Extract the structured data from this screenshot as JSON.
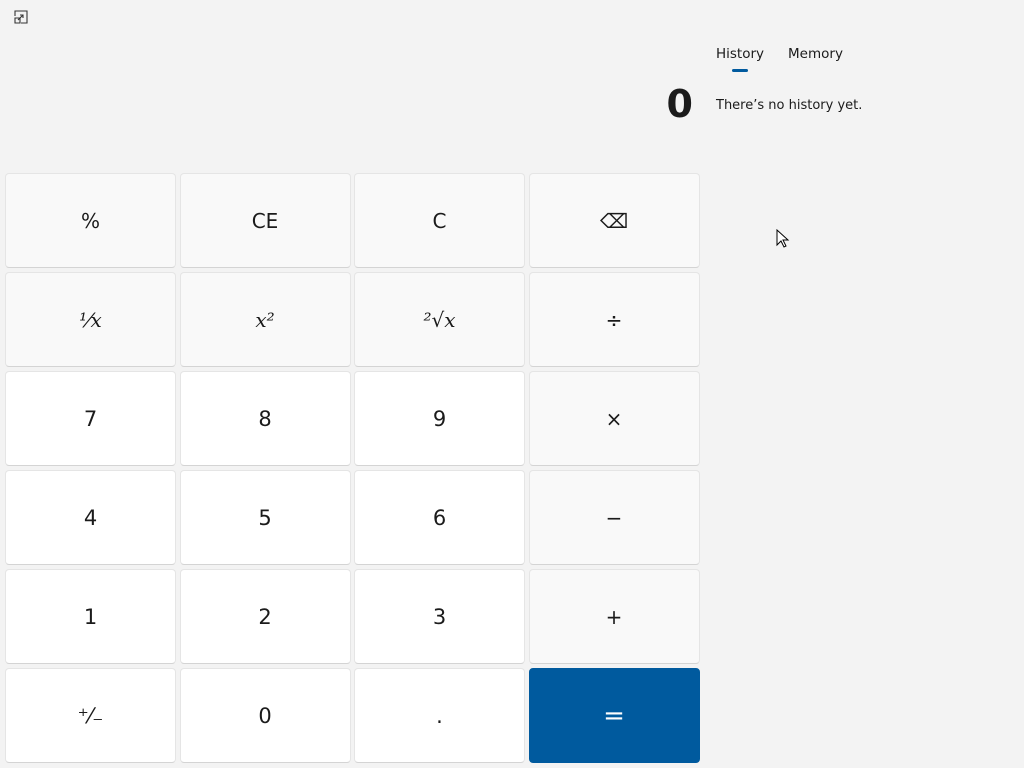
{
  "display": {
    "value": "0"
  },
  "panel": {
    "tabs": [
      {
        "label": "History",
        "active": true
      },
      {
        "label": "Memory",
        "active": false
      }
    ],
    "empty_message": "There’s no history yet."
  },
  "keys": [
    {
      "label": "%",
      "kind": "fn",
      "name": "percent-button"
    },
    {
      "label": "CE",
      "kind": "fn",
      "name": "clear-entry-button"
    },
    {
      "label": "C",
      "kind": "fn",
      "name": "clear-button"
    },
    {
      "label": "⌫",
      "kind": "fn",
      "name": "backspace-button"
    },
    {
      "label": "¹⁄x",
      "kind": "fn",
      "name": "reciprocal-button"
    },
    {
      "label": "x²",
      "kind": "fn",
      "name": "square-button"
    },
    {
      "label": "²√x",
      "kind": "fn",
      "name": "square-root-button"
    },
    {
      "label": "÷",
      "kind": "fn",
      "name": "divide-button"
    },
    {
      "label": "7",
      "kind": "num",
      "name": "seven-button"
    },
    {
      "label": "8",
      "kind": "num",
      "name": "eight-button"
    },
    {
      "label": "9",
      "kind": "num",
      "name": "nine-button"
    },
    {
      "label": "×",
      "kind": "fn",
      "name": "multiply-button"
    },
    {
      "label": "4",
      "kind": "num",
      "name": "four-button"
    },
    {
      "label": "5",
      "kind": "num",
      "name": "five-button"
    },
    {
      "label": "6",
      "kind": "num",
      "name": "six-button"
    },
    {
      "label": "−",
      "kind": "fn",
      "name": "minus-button"
    },
    {
      "label": "1",
      "kind": "num",
      "name": "one-button"
    },
    {
      "label": "2",
      "kind": "num",
      "name": "two-button"
    },
    {
      "label": "3",
      "kind": "num",
      "name": "three-button"
    },
    {
      "label": "+",
      "kind": "fn",
      "name": "plus-button"
    },
    {
      "label": "⁺⁄₋",
      "kind": "num",
      "name": "negate-button"
    },
    {
      "label": "0",
      "kind": "num",
      "name": "zero-button"
    },
    {
      "label": ".",
      "kind": "num",
      "name": "decimal-button"
    },
    {
      "label": "=",
      "kind": "eq",
      "name": "equals-button"
    }
  ],
  "colors": {
    "accent": "#005a9e",
    "background": "#f3f3f3"
  }
}
